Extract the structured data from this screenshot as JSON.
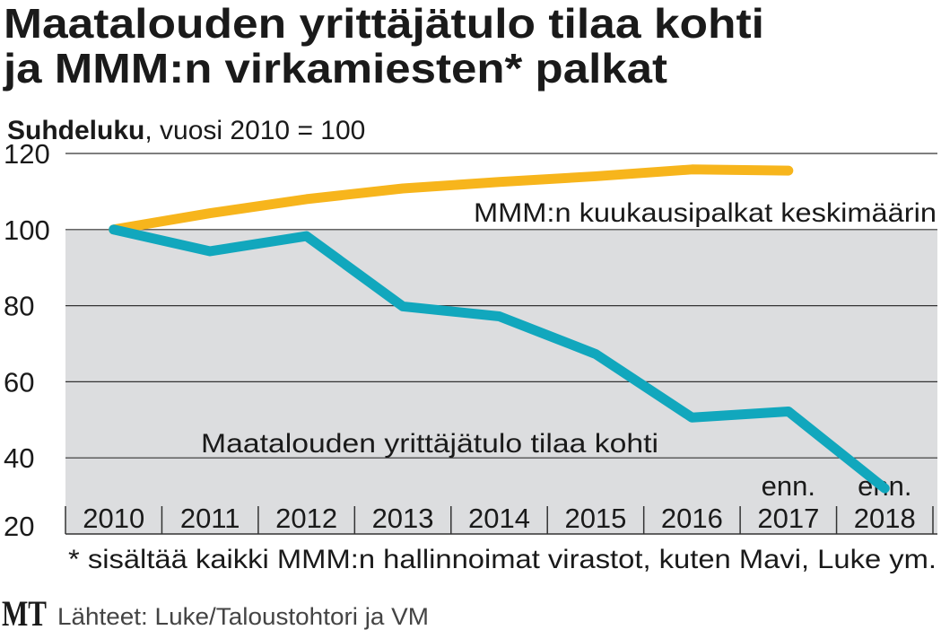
{
  "title_line1": "Maatalouden yrittäjätulo tilaa kohti",
  "title_line2": "ja MMM:n virkamiesten* palkat",
  "subtitle_bold": "Suhdeluku",
  "subtitle_rest": ", vuosi 2010 = 100",
  "footnote": "* sisältää kaikki MMM:n hallinnoimat virastot, kuten Mavi, Luke ym.",
  "logo": "MT",
  "source": "Lähteet: Luke/Taloustohtori ja VM",
  "colors": {
    "salaries": "#f7b51c",
    "income": "#11a7bd",
    "plot_bg": "#dcdddf"
  },
  "chart_data": {
    "type": "line",
    "title": "Maatalouden yrittäjätulo tilaa kohti ja MMM:n virkamiesten* palkat",
    "ylabel": "Suhdeluku, vuosi 2010 = 100",
    "xlabel": "",
    "ylim": [
      20,
      120
    ],
    "yticks": [
      "120",
      "100",
      "80",
      "60",
      "40",
      "20"
    ],
    "ytick_values": [
      120,
      100,
      80,
      60,
      40,
      20
    ],
    "categories": [
      "2010",
      "2011",
      "2012",
      "2013",
      "2014",
      "2015",
      "2016",
      "2017",
      "2018"
    ],
    "forecast_marks": [
      "",
      "",
      "",
      "",
      "",
      "",
      "",
      "enn.",
      "enn."
    ],
    "grid": true,
    "series": [
      {
        "name": "MMM:n kuukausipalkat keskimäärin",
        "values": [
          100,
          104.3,
          108,
          110.8,
          112.5,
          114,
          115.8,
          115.5,
          null
        ]
      },
      {
        "name": "Maatalouden yrittäjätulo tilaa kohti",
        "values": [
          100,
          94.3,
          98.3,
          79.8,
          77.2,
          67.3,
          50.6,
          52.2,
          32
        ]
      }
    ]
  }
}
